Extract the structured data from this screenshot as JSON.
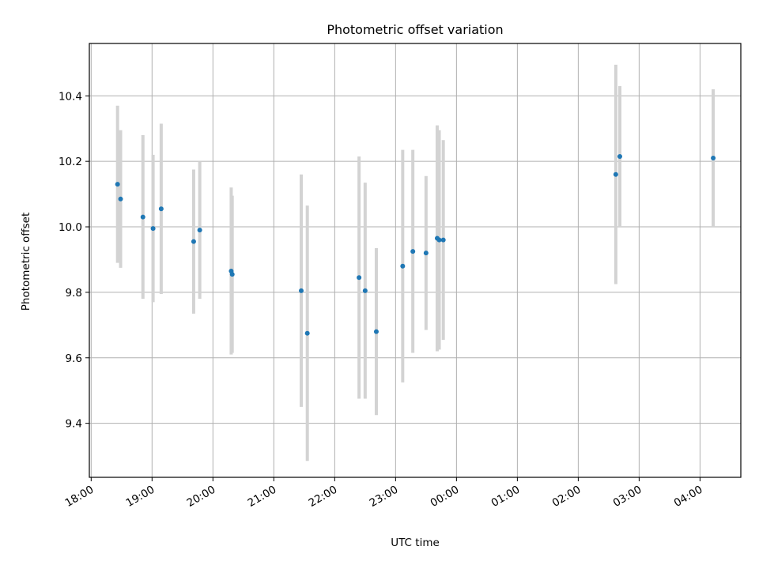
{
  "chart_data": {
    "type": "scatter",
    "title": "Photometric offset variation",
    "xlabel": "UTC time",
    "ylabel": "Photometric offset",
    "grid": true,
    "ylim": [
      9.235,
      10.56
    ],
    "xlim_hours": [
      17.97,
      28.67
    ],
    "x_ticks": [
      {
        "hour": 18,
        "label": "18:00"
      },
      {
        "hour": 19,
        "label": "19:00"
      },
      {
        "hour": 20,
        "label": "20:00"
      },
      {
        "hour": 21,
        "label": "21:00"
      },
      {
        "hour": 22,
        "label": "22:00"
      },
      {
        "hour": 23,
        "label": "23:00"
      },
      {
        "hour": 24,
        "label": "00:00"
      },
      {
        "hour": 25,
        "label": "01:00"
      },
      {
        "hour": 26,
        "label": "02:00"
      },
      {
        "hour": 27,
        "label": "03:00"
      },
      {
        "hour": 28,
        "label": "04:00"
      }
    ],
    "y_ticks": [
      {
        "value": 9.4,
        "label": "9.4"
      },
      {
        "value": 9.6,
        "label": "9.6"
      },
      {
        "value": 9.8,
        "label": "9.8"
      },
      {
        "value": 10.0,
        "label": "10.0"
      },
      {
        "value": 10.2,
        "label": "10.2"
      },
      {
        "value": 10.4,
        "label": "10.4"
      }
    ],
    "series": [
      {
        "color": "#1f77b4",
        "error_color": "#d3d3d3",
        "points": [
          {
            "time": "18:26",
            "y": 10.13,
            "err": 0.24
          },
          {
            "time": "18:29",
            "y": 10.085,
            "err": 0.21
          },
          {
            "time": "18:51",
            "y": 10.03,
            "err": 0.25
          },
          {
            "time": "19:01",
            "y": 9.995,
            "err": 0.225
          },
          {
            "time": "19:09",
            "y": 10.055,
            "err": 0.26
          },
          {
            "time": "19:41",
            "y": 9.955,
            "err": 0.22
          },
          {
            "time": "19:47",
            "y": 9.99,
            "err": 0.21
          },
          {
            "time": "20:18",
            "y": 9.865,
            "err": 0.255
          },
          {
            "time": "20:19",
            "y": 9.855,
            "err": 0.24
          },
          {
            "time": "21:27",
            "y": 9.805,
            "err": 0.355
          },
          {
            "time": "21:33",
            "y": 9.675,
            "err": 0.39
          },
          {
            "time": "22:24",
            "y": 9.845,
            "err": 0.37
          },
          {
            "time": "22:30",
            "y": 9.805,
            "err": 0.33
          },
          {
            "time": "22:41",
            "y": 9.68,
            "err": 0.255
          },
          {
            "time": "23:07",
            "y": 9.88,
            "err": 0.355
          },
          {
            "time": "23:17",
            "y": 9.925,
            "err": 0.31
          },
          {
            "time": "23:30",
            "y": 9.92,
            "err": 0.235
          },
          {
            "time": "23:41",
            "y": 9.965,
            "err": 0.345
          },
          {
            "time": "23:43",
            "y": 9.96,
            "err": 0.335
          },
          {
            "time": "23:47",
            "y": 9.96,
            "err": 0.305
          },
          {
            "time": "02:37",
            "y": 10.16,
            "err": 0.335
          },
          {
            "time": "02:41",
            "y": 10.215,
            "err": 0.215
          },
          {
            "time": "04:13",
            "y": 10.21,
            "err": 0.21
          }
        ]
      }
    ]
  }
}
